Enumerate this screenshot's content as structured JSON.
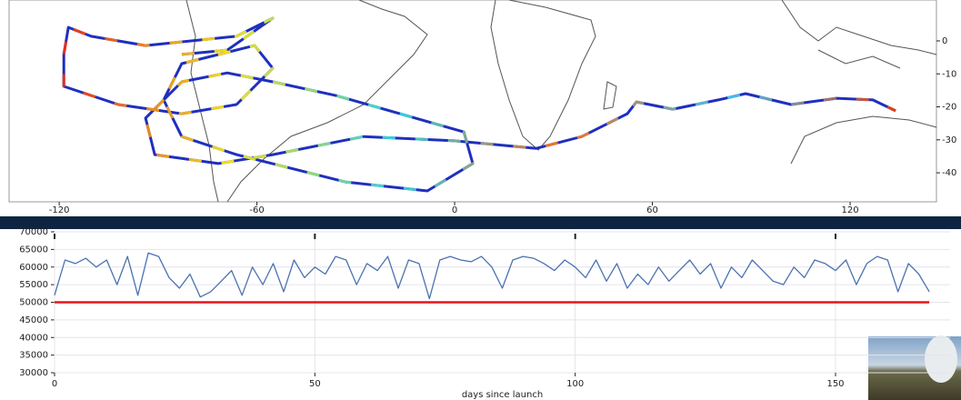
{
  "chart_data": [
    {
      "type": "line",
      "x": [
        -82.8,
        -69.0,
        -55.2,
        -66.2,
        -93.8,
        -110.3,
        -117.2,
        -118.6,
        -118.6,
        -102.1,
        -82.8,
        -66.2,
        -55.2,
        -60.7,
        -82.8,
        -88.3,
        -82.8,
        -66.2,
        -33.1,
        -8.3,
        5.5,
        2.8,
        -16.6,
        -35.9,
        -55.2,
        -69.0,
        -82.8,
        -93.8,
        -91.0,
        -71.7,
        -55.2,
        -27.6,
        0.0,
        24.8,
        38.6,
        52.4,
        55.2,
        66.2,
        80.0,
        88.3,
        102.1,
        115.9,
        126.9,
        133.8
      ],
      "series": [
        {
          "color": "#1f2fbf",
          "values": [
            -4.1,
            -2.8,
            6.9,
            1.4,
            -1.4,
            1.4,
            4.1,
            -4.1,
            -13.8,
            -19.3,
            -22.1,
            -19.3,
            -8.3,
            -1.4,
            -6.9,
            -17.9,
            -29.0,
            -34.5,
            -42.8,
            -45.5,
            -37.2,
            -27.6,
            -22.1,
            -16.6,
            -12.4,
            -9.7,
            -12.4,
            -23.4,
            -34.5,
            -37.2,
            -34.5,
            -29.0,
            -30.3,
            -32.6,
            -29.0,
            -22.1,
            -18.5,
            -20.7,
            -17.9,
            -16.0,
            -19.3,
            -17.4,
            -17.9,
            -21.2
          ]
        }
      ],
      "xlim": [
        -135.2,
        146.2
      ],
      "ylim": [
        -48.8,
        12.4
      ],
      "xticks": [
        -120,
        -60,
        0,
        60,
        120
      ],
      "yticks": [
        0,
        -10,
        -20,
        -30,
        -40
      ]
    },
    {
      "type": "line",
      "x_label": "days since launch",
      "x": [
        0,
        2,
        4,
        6,
        8,
        10,
        12,
        14,
        16,
        18,
        20,
        22,
        24,
        26,
        28,
        30,
        32,
        34,
        36,
        38,
        40,
        42,
        44,
        46,
        48,
        50,
        52,
        54,
        56,
        58,
        60,
        62,
        64,
        66,
        68,
        70,
        72,
        74,
        76,
        78,
        80,
        82,
        84,
        86,
        88,
        90,
        92,
        94,
        96,
        98,
        100,
        102,
        104,
        106,
        108,
        110,
        112,
        114,
        116,
        118,
        120,
        122,
        124,
        126,
        128,
        130,
        132,
        134,
        136,
        138,
        140,
        142,
        144,
        146,
        148,
        150,
        152,
        154,
        156,
        158,
        160,
        162,
        164,
        166,
        168
      ],
      "series": [
        {
          "color": "#4c72b0",
          "values": [
            52000,
            62000,
            61000,
            62500,
            60000,
            62000,
            55000,
            63000,
            52000,
            64000,
            63000,
            57000,
            54000,
            58000,
            51500,
            53000,
            56000,
            59000,
            52000,
            60000,
            55000,
            61000,
            53000,
            62000,
            57000,
            60000,
            58000,
            63000,
            62000,
            55000,
            61000,
            59000,
            63000,
            54000,
            62000,
            61000,
            51000,
            62000,
            63000,
            62000,
            61500,
            63000,
            60000,
            54000,
            62000,
            63000,
            62500,
            61000,
            59000,
            62000,
            60000,
            57000,
            62000,
            56000,
            61000,
            54000,
            58000,
            55000,
            60000,
            56000,
            59000,
            62000,
            58000,
            61000,
            54000,
            60000,
            57000,
            62000,
            59000,
            56000,
            55000,
            60000,
            57000,
            62000,
            61000,
            59000,
            62000,
            55000,
            61000,
            63000,
            62000,
            53000,
            61000,
            58000,
            53000
          ]
        }
      ],
      "hline": 50000,
      "hline_color": "#e8141c",
      "xlim": [
        0,
        172
      ],
      "ylim": [
        30000,
        70000
      ],
      "xticks": [
        0,
        50,
        100,
        150
      ],
      "yticks": [
        70000,
        65000,
        60000,
        55000,
        50000,
        45000,
        40000,
        35000,
        30000
      ],
      "grid": true
    }
  ]
}
